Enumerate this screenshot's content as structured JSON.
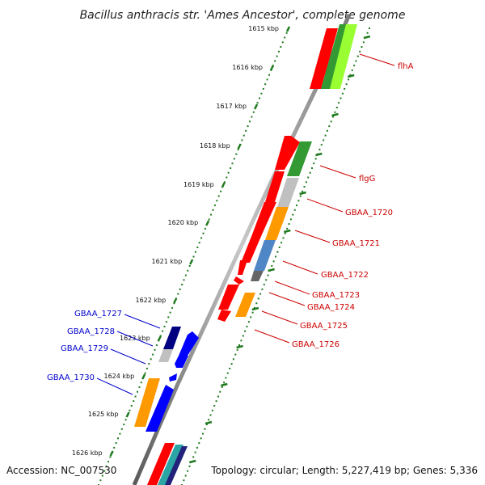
{
  "title": "Bacillus anthracis str. 'Ames Ancestor', complete genome",
  "accession": "Accession: NC_007530",
  "summary": "Topology: circular; Length: 5,227,419 bp; Genes: 5,336",
  "colors": {
    "backbone": "#888888",
    "tick": "#1f7a1f",
    "label_forward": "#cc0000",
    "label_reverse": "#0000cc",
    "red": "#ff0000",
    "green": "#339933",
    "lightgreen": "#99ff33",
    "gray": "#c0c0c0",
    "orange": "#ff9900",
    "steelblue": "#4f86c6",
    "darkgray": "#666666",
    "navy": "#000080",
    "blue": "#0000ff"
  },
  "ruler": {
    "unit": "kbp",
    "ticks": [
      "1615 kbp",
      "1616 kbp",
      "1617 kbp",
      "1618 kbp",
      "1619 kbp",
      "1620 kbp",
      "1621 kbp",
      "1622 kbp",
      "1623 kbp",
      "1624 kbp",
      "1625 kbp",
      "1626 kbp"
    ]
  },
  "forward_labels": [
    "flhA",
    "flgG",
    "GBAA_1720",
    "GBAA_1721",
    "GBAA_1722",
    "GBAA_1723",
    "GBAA_1724",
    "GBAA_1725",
    "GBAA_1726"
  ],
  "reverse_labels": [
    "GBAA_1727",
    "GBAA_1728",
    "GBAA_1729",
    "GBAA_1730"
  ]
}
